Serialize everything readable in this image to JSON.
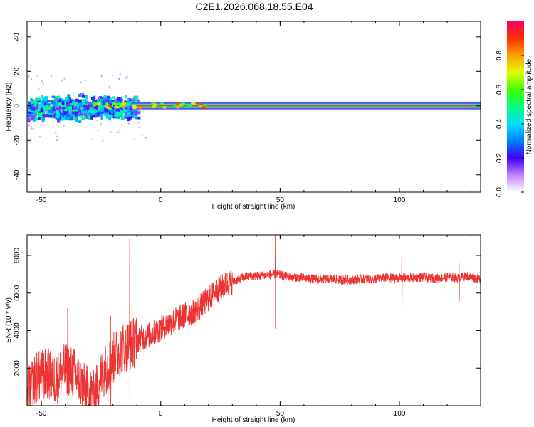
{
  "title": "C2E1.2026.068.18.55.E04",
  "chart_data": [
    {
      "type": "heatmap",
      "name": "spectrogram",
      "xlabel": "Height of straight line (km)",
      "ylabel": "Frequency (Hz)",
      "xlim": [
        -56,
        134
      ],
      "ylim": [
        -50,
        49
      ],
      "x_ticks": [
        -50,
        0,
        50,
        100
      ],
      "y_ticks": [
        -40,
        -20,
        0,
        20,
        40
      ],
      "x_tick_labels": [
        "-50",
        "0",
        "50",
        "100"
      ],
      "y_tick_labels": [
        "-40",
        "-20",
        "0",
        "20",
        "40"
      ],
      "colorbar": {
        "label": "Normalized spectral amplitude",
        "range": [
          0,
          1
        ],
        "ticks": [
          0.0,
          0.2,
          0.4,
          0.6,
          0.8
        ],
        "tick_labels": [
          "0.0",
          "0.2",
          "0.4",
          "0.6",
          "0.8"
        ],
        "colors": [
          "#ffffff",
          "#c080ff",
          "#4000ff",
          "#0080ff",
          "#00e0ff",
          "#00ff80",
          "#40ff00",
          "#e0ff00",
          "#ffa000",
          "#ff3000",
          "#ff0060"
        ]
      },
      "description_points": [
        {
          "x_range": [
            -56,
            -12
          ],
          "freq_spread": 6,
          "amplitude": "scattered 0.2-0.5"
        },
        {
          "x_range": [
            -12,
            134
          ],
          "freq_center": 0,
          "amplitude": "1.0 carrier line"
        }
      ]
    },
    {
      "type": "line",
      "name": "snr",
      "xlabel": "Height of straight line (km)",
      "ylabel": "SNR (10 * v/v)",
      "xlim": [
        -56,
        134
      ],
      "ylim": [
        0,
        9100
      ],
      "x_ticks": [
        -50,
        0,
        50,
        100
      ],
      "y_ticks": [
        2000,
        4000,
        6000,
        8000
      ],
      "x_tick_labels": [
        "-50",
        "0",
        "50",
        "100"
      ],
      "y_tick_labels": [
        "2000",
        "4000",
        "6000",
        "8000"
      ],
      "color": "#ee3333",
      "x": [
        -56,
        -52,
        -48,
        -44,
        -40,
        -36,
        -32,
        -28,
        -24,
        -20,
        -16,
        -12,
        -8,
        -4,
        0,
        4,
        8,
        12,
        16,
        20,
        24,
        28,
        32,
        36,
        40,
        44,
        48,
        52,
        56,
        60,
        64,
        68,
        72,
        76,
        80,
        84,
        88,
        92,
        96,
        100,
        104,
        108,
        112,
        116,
        120,
        124,
        128,
        134
      ],
      "y": [
        800,
        1500,
        1700,
        1400,
        2000,
        1700,
        900,
        500,
        1800,
        2500,
        3100,
        3300,
        3600,
        3800,
        4100,
        4400,
        4700,
        4900,
        5200,
        5700,
        6200,
        6500,
        6700,
        6900,
        6900,
        6950,
        7000,
        6900,
        6850,
        6800,
        6750,
        6750,
        6750,
        6700,
        6700,
        6750,
        6750,
        6800,
        6800,
        6800,
        6800,
        6850,
        6800,
        6800,
        6850,
        6800,
        6900,
        6750
      ],
      "spikes": [
        {
          "x": -39,
          "low": 0,
          "high": 5200
        },
        {
          "x": -28,
          "low": 0,
          "high": 1200
        },
        {
          "x": -21,
          "low": 0,
          "high": 4800
        },
        {
          "x": -13,
          "low": 0,
          "high": 8900
        },
        {
          "x": 48,
          "low": 4100,
          "high": 9100
        },
        {
          "x": 101,
          "low": 4700,
          "high": 8000
        },
        {
          "x": 125,
          "low": 5500,
          "high": 7600
        }
      ]
    }
  ]
}
